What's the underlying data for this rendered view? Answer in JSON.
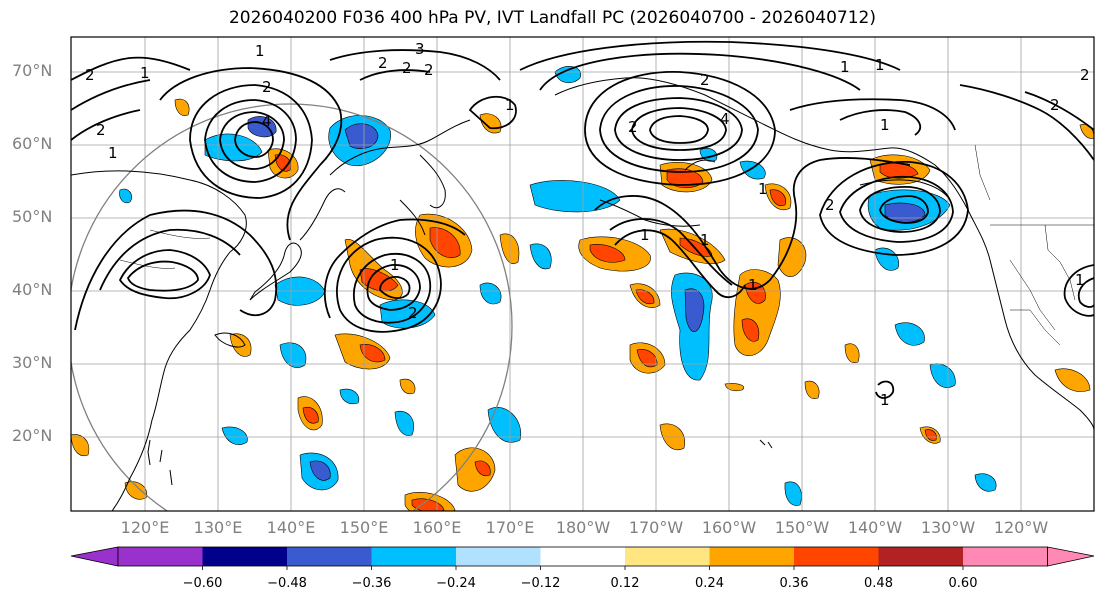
{
  "title": "2026040200 F036 400 hPa PV, IVT Landfall PC (2026040700 - 2026040712)",
  "lat_labels": [
    "70°N",
    "60°N",
    "50°N",
    "40°N",
    "30°N",
    "20°N"
  ],
  "lon_labels": [
    "120°E",
    "130°E",
    "140°E",
    "150°E",
    "160°E",
    "170°E",
    "180°W",
    "170°W",
    "160°W",
    "150°W",
    "140°W",
    "130°W",
    "120°W"
  ],
  "colorbar": {
    "ticks": [
      "−0.60",
      "−0.48",
      "−0.36",
      "−0.24",
      "−0.12",
      "0.12",
      "0.24",
      "0.36",
      "0.48",
      "0.60"
    ],
    "colors": [
      "#9932cc",
      "#00008b",
      "#3a5bd0",
      "#00bfff",
      "#b0e2ff",
      "#ffffff",
      "#ffe680",
      "#ffa500",
      "#ff4500",
      "#b22222",
      "#ff89b4"
    ]
  },
  "contour_labels": [
    "1",
    "2",
    "3",
    "4"
  ]
}
